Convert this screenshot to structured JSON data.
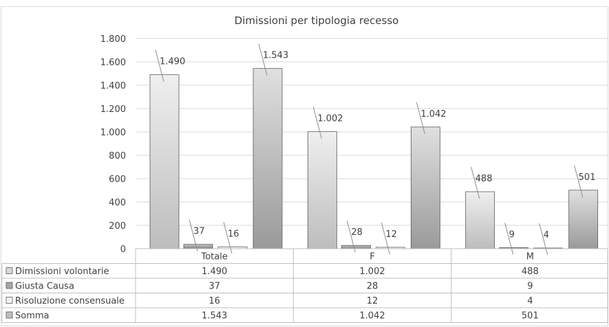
{
  "chart_data": {
    "type": "bar",
    "title": "Dimissioni per tipologia recesso",
    "categories": [
      "Totale",
      "F",
      "M"
    ],
    "series": [
      {
        "name": "Dimissioni volontarie",
        "values": [
          1490,
          1002,
          488
        ],
        "labels": [
          "1.490",
          "1.002",
          "488"
        ]
      },
      {
        "name": "Giusta Causa",
        "values": [
          37,
          28,
          9
        ],
        "labels": [
          "37",
          "28",
          "9"
        ]
      },
      {
        "name": "Risoluzione consensuale",
        "values": [
          16,
          12,
          4
        ],
        "labels": [
          "16",
          "12",
          "4"
        ]
      },
      {
        "name": "Somma",
        "values": [
          1543,
          1042,
          501
        ],
        "labels": [
          "1.543",
          "1.042",
          "501"
        ]
      }
    ],
    "ylim": [
      0,
      1800
    ],
    "yticks": [
      0,
      200,
      400,
      600,
      800,
      1000,
      1200,
      1400,
      1600,
      1800
    ],
    "ytick_labels": [
      "0",
      "200",
      "400",
      "600",
      "800",
      "1.000",
      "1.200",
      "1.400",
      "1.600",
      "1.800"
    ],
    "grid": true,
    "legend": "data-table-below",
    "colors": {
      "Dimissioni volontarie": "#d9d9d9",
      "Giusta Causa": "#a6a6a6",
      "Risoluzione consensuale": "#f2f2f2",
      "Somma": "#bfbfbf",
      "grid": "#d9d9d9",
      "text": "#404040",
      "table_border": "#bfbfbf"
    }
  }
}
